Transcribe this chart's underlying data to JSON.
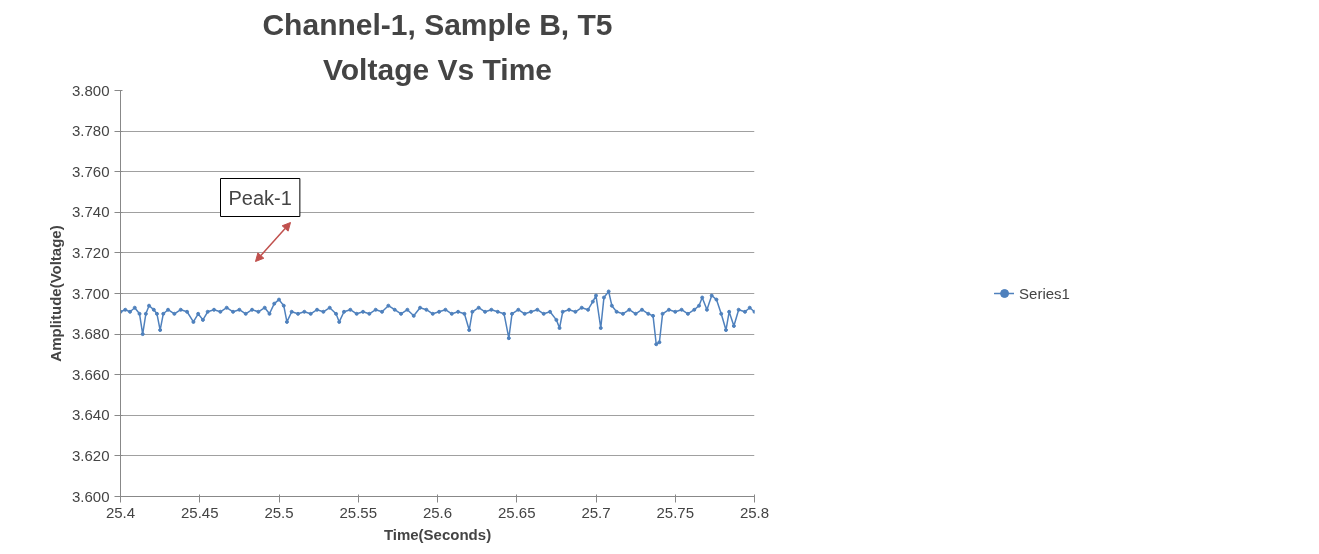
{
  "chart_data": {
    "type": "line",
    "title": "Channel-1, Sample B, T5",
    "subtitle": "Voltage Vs Time",
    "xlabel": "Time(Seconds)",
    "ylabel": "Amplitude(Voltage)",
    "annotations": [
      "Peak-1"
    ],
    "xlim": [
      25.4,
      25.8
    ],
    "xticks": [
      25.4,
      25.45,
      25.5,
      25.55,
      25.6,
      25.65,
      25.7,
      25.75,
      25.8
    ],
    "ylim": [
      3.6,
      3.8
    ],
    "yticks": [
      {
        "value": 3.6,
        "label": "3.600"
      },
      {
        "value": 3.62,
        "label": "3.620"
      },
      {
        "value": 3.64,
        "label": "3.640"
      },
      {
        "value": 3.66,
        "label": "3.660"
      },
      {
        "value": 3.68,
        "label": "3.680"
      },
      {
        "value": 3.7,
        "label": "3.700"
      },
      {
        "value": 3.72,
        "label": "3.720"
      },
      {
        "value": 3.74,
        "label": "3.740"
      },
      {
        "value": 3.76,
        "label": "3.760"
      },
      {
        "value": 3.78,
        "label": "3.780"
      },
      {
        "value": 3.8,
        "label": "3.800"
      }
    ],
    "grid": "y",
    "legend": "right",
    "marker": "circle",
    "line_style": "solid",
    "x": [
      25.4,
      25.403,
      25.406,
      25.409,
      25.412,
      25.414,
      25.416,
      25.418,
      25.421,
      25.423,
      25.425,
      25.427,
      25.43,
      25.434,
      25.438,
      25.442,
      25.446,
      25.449,
      25.452,
      25.455,
      25.459,
      25.463,
      25.467,
      25.471,
      25.475,
      25.479,
      25.483,
      25.487,
      25.491,
      25.494,
      25.497,
      25.5,
      25.503,
      25.505,
      25.508,
      25.512,
      25.516,
      25.52,
      25.524,
      25.528,
      25.532,
      25.536,
      25.538,
      25.541,
      25.545,
      25.549,
      25.553,
      25.557,
      25.561,
      25.565,
      25.569,
      25.573,
      25.577,
      25.581,
      25.585,
      25.589,
      25.593,
      25.597,
      25.601,
      25.605,
      25.609,
      25.613,
      25.617,
      25.62,
      25.622,
      25.626,
      25.63,
      25.634,
      25.638,
      25.642,
      25.645,
      25.647,
      25.651,
      25.655,
      25.659,
      25.663,
      25.667,
      25.671,
      25.675,
      25.677,
      25.679,
      25.683,
      25.687,
      25.691,
      25.695,
      25.698,
      25.7,
      25.703,
      25.705,
      25.708,
      25.71,
      25.713,
      25.717,
      25.721,
      25.725,
      25.729,
      25.733,
      25.736,
      25.738,
      25.74,
      25.742,
      25.746,
      25.75,
      25.754,
      25.758,
      25.762,
      25.765,
      25.767,
      25.77,
      25.773,
      25.776,
      25.779,
      25.782,
      25.784,
      25.787,
      25.79,
      25.794,
      25.797,
      25.8
    ],
    "series": [
      {
        "name": "Series1",
        "color": "#4f81bd",
        "values": [
          3.691,
          3.692,
          3.691,
          3.693,
          3.69,
          3.68,
          3.69,
          3.694,
          3.692,
          3.69,
          3.682,
          3.69,
          3.692,
          3.69,
          3.692,
          3.691,
          3.686,
          3.69,
          3.687,
          3.691,
          3.692,
          3.691,
          3.693,
          3.691,
          3.692,
          3.69,
          3.692,
          3.691,
          3.693,
          3.69,
          3.695,
          3.697,
          3.694,
          3.686,
          3.691,
          3.69,
          3.691,
          3.69,
          3.692,
          3.691,
          3.693,
          3.69,
          3.686,
          3.691,
          3.692,
          3.69,
          3.691,
          3.69,
          3.692,
          3.691,
          3.694,
          3.692,
          3.69,
          3.692,
          3.689,
          3.693,
          3.692,
          3.69,
          3.691,
          3.692,
          3.69,
          3.691,
          3.69,
          3.682,
          3.691,
          3.693,
          3.691,
          3.692,
          3.691,
          3.69,
          3.678,
          3.69,
          3.692,
          3.69,
          3.691,
          3.692,
          3.69,
          3.691,
          3.687,
          3.683,
          3.691,
          3.692,
          3.691,
          3.693,
          3.692,
          3.696,
          3.699,
          3.683,
          3.698,
          3.701,
          3.694,
          3.691,
          3.69,
          3.692,
          3.69,
          3.692,
          3.69,
          3.689,
          3.675,
          3.676,
          3.69,
          3.692,
          3.691,
          3.692,
          3.69,
          3.692,
          3.694,
          3.698,
          3.692,
          3.699,
          3.697,
          3.69,
          3.682,
          3.691,
          3.684,
          3.692,
          3.691,
          3.693,
          3.691
        ]
      }
    ]
  }
}
